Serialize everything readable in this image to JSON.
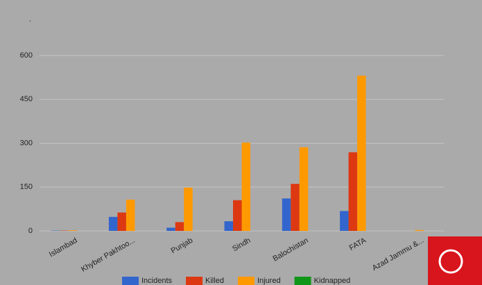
{
  "chart_data": {
    "type": "bar",
    "title": ".",
    "categories": [
      "Islambad",
      "Khyber Pakhtoo...",
      "Punjab",
      "Sindh",
      "Balochistan",
      "FATA",
      "Azad Jammu &..."
    ],
    "series": [
      {
        "name": "Incidents",
        "color": "#3366cc",
        "values": [
          1,
          48,
          11,
          33,
          111,
          68,
          0
        ]
      },
      {
        "name": "Killed",
        "color": "#dc3912",
        "values": [
          1,
          63,
          30,
          105,
          161,
          269,
          0
        ]
      },
      {
        "name": "Injured",
        "color": "#ff9900",
        "values": [
          2,
          107,
          148,
          302,
          286,
          531,
          3
        ]
      },
      {
        "name": "Kidnapped",
        "color": "#109618",
        "values": [
          0,
          0,
          0,
          0,
          0,
          0,
          0
        ]
      }
    ],
    "ylim": [
      0,
      600
    ],
    "yticks": [
      0,
      150,
      300,
      450,
      600
    ],
    "grid": true,
    "legend": "bottom"
  }
}
